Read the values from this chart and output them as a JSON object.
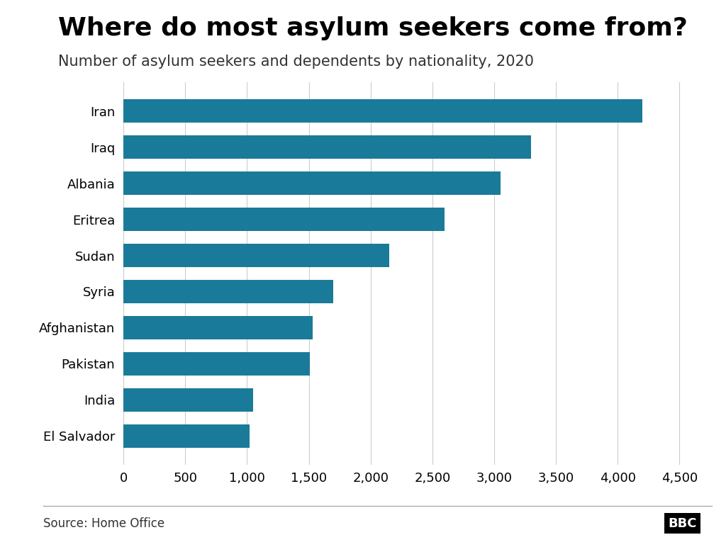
{
  "title": "Where do most asylum seekers come from?",
  "subtitle": "Number of asylum seekers and dependents by nationality, 2020",
  "source": "Source: Home Office",
  "categories": [
    "Iran",
    "Iraq",
    "Albania",
    "Eritrea",
    "Sudan",
    "Syria",
    "Afghanistan",
    "Pakistan",
    "India",
    "El Salvador"
  ],
  "values": [
    4200,
    3300,
    3050,
    2600,
    2150,
    1700,
    1530,
    1510,
    1050,
    1020
  ],
  "bar_color": "#1a7a99",
  "background_color": "#ffffff",
  "xlim": [
    0,
    4700
  ],
  "xticks": [
    0,
    500,
    1000,
    1500,
    2000,
    2500,
    3000,
    3500,
    4000,
    4500
  ],
  "xtick_labels": [
    "0",
    "500",
    "1,000",
    "1,500",
    "2,000",
    "2,500",
    "3,000",
    "3,500",
    "4,000",
    "4,500"
  ],
  "title_fontsize": 26,
  "subtitle_fontsize": 15,
  "tick_fontsize": 13,
  "ylabel_fontsize": 13,
  "source_fontsize": 12,
  "bar_height": 0.65
}
